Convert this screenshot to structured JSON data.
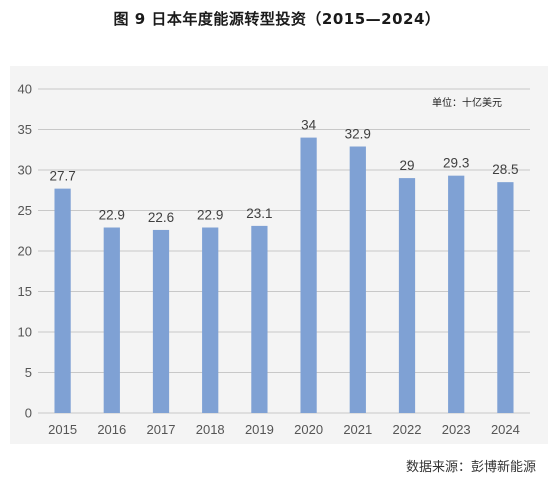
{
  "figure": {
    "title": "图 9  日本年度能源转型投资（2015—2024）",
    "unit_note": "单位：十亿美元",
    "source": "数据来源：彭博新能源"
  },
  "chart_data": {
    "type": "bar",
    "title": "图 9  日本年度能源转型投资（2015—2024）",
    "xlabel": "",
    "ylabel": "",
    "categories": [
      "2015",
      "2016",
      "2017",
      "2018",
      "2019",
      "2020",
      "2021",
      "2022",
      "2023",
      "2024"
    ],
    "values": [
      27.7,
      22.9,
      22.6,
      22.9,
      23.1,
      34,
      32.9,
      29,
      29.3,
      28.5
    ],
    "data_labels": [
      "27.7",
      "22.9",
      "22.6",
      "22.9",
      "23.1",
      "34",
      "32.9",
      "29",
      "29.3",
      "28.5"
    ],
    "ylim": [
      0,
      40
    ],
    "yticks": [
      0,
      5,
      10,
      15,
      20,
      25,
      30,
      35,
      40
    ],
    "grid": true,
    "legend": "none",
    "bar_color": "#7fa1d4",
    "grid_color": "#c8c8c8",
    "background_color": "#f4f4f4"
  }
}
